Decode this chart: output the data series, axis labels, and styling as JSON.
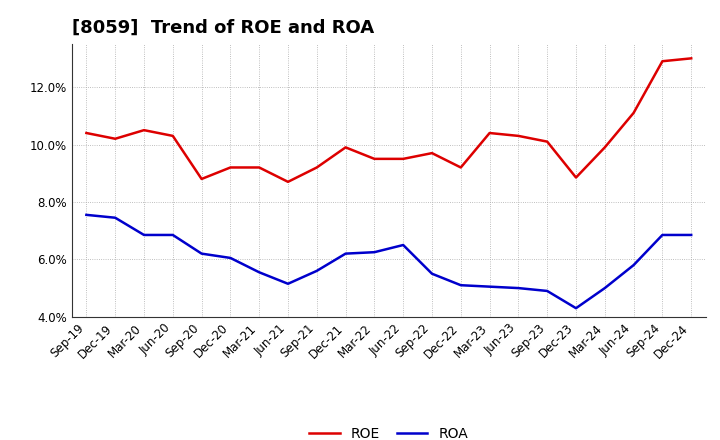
{
  "title": "[8059]  Trend of ROE and ROA",
  "labels": [
    "Sep-19",
    "Dec-19",
    "Mar-20",
    "Jun-20",
    "Sep-20",
    "Dec-20",
    "Mar-21",
    "Jun-21",
    "Sep-21",
    "Dec-21",
    "Mar-22",
    "Jun-22",
    "Sep-22",
    "Dec-22",
    "Mar-23",
    "Jun-23",
    "Sep-23",
    "Dec-23",
    "Mar-24",
    "Jun-24",
    "Sep-24",
    "Dec-24"
  ],
  "ROE": [
    10.4,
    10.2,
    10.5,
    10.3,
    8.8,
    9.2,
    9.2,
    8.7,
    9.2,
    9.9,
    9.5,
    9.5,
    9.7,
    9.2,
    10.4,
    10.3,
    10.1,
    8.85,
    9.9,
    11.1,
    12.9,
    13.0
  ],
  "ROA": [
    7.55,
    7.45,
    6.85,
    6.85,
    6.2,
    6.05,
    5.55,
    5.15,
    5.6,
    6.2,
    6.25,
    6.5,
    5.5,
    5.1,
    5.05,
    5.0,
    4.9,
    4.3,
    5.0,
    5.8,
    6.85,
    6.85
  ],
  "roe_color": "#dd0000",
  "roa_color": "#0000cc",
  "bg_color": "#ffffff",
  "plot_bg_color": "#ffffff",
  "grid_color": "#aaaaaa",
  "ylim": [
    4.0,
    13.5
  ],
  "yticks": [
    4.0,
    6.0,
    8.0,
    10.0,
    12.0
  ],
  "line_width": 1.8,
  "title_fontsize": 13,
  "tick_fontsize": 8.5,
  "legend_fontsize": 10
}
